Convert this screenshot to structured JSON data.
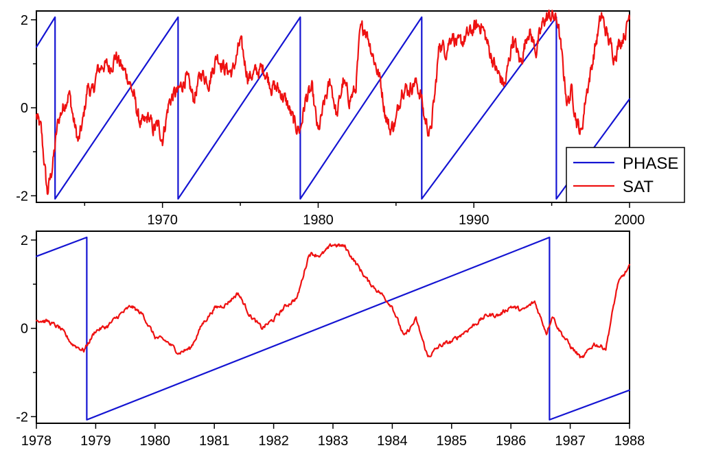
{
  "colors": {
    "phase": "#1414d2",
    "sat": "#ee1111"
  },
  "chart_data": [
    {
      "type": "line",
      "title": "",
      "xlabel": "",
      "ylabel": "",
      "xlim": [
        1961.9,
        2000
      ],
      "ylim": [
        -2.15,
        2.2
      ],
      "x_ticks": [
        1970,
        1980,
        1990,
        2000
      ],
      "x_ticks_unlabeled": [
        1965,
        1975,
        1985,
        1995
      ],
      "y_ticks": [
        -2,
        0,
        2
      ],
      "y_ticks_unlabeled": [
        -1,
        1
      ],
      "grid": false,
      "legend": {
        "placement": "bottom-right",
        "entries": [
          "PHASE",
          "SAT"
        ]
      },
      "series": [
        {
          "name": "PHASE",
          "color": "#1414d2",
          "kind": "sawtooth",
          "x": [
            1961.9,
            1963.1,
            1963.1,
            1971.0,
            1971.0,
            1978.85,
            1978.85,
            1986.65,
            1986.65,
            1995.3,
            1995.3,
            2000.0
          ],
          "y": [
            1.38,
            2.06,
            -2.07,
            2.06,
            -2.07,
            2.06,
            -2.07,
            2.06,
            -2.07,
            2.06,
            -2.07,
            0.2
          ]
        },
        {
          "name": "SAT",
          "color": "#ee1111",
          "kind": "noisy",
          "x": [
            1961.9,
            1962.2,
            1962.45,
            1962.6,
            1962.8,
            1963.0,
            1963.3,
            1963.6,
            1964.0,
            1964.3,
            1964.6,
            1964.9,
            1965.2,
            1965.5,
            1965.8,
            1966.2,
            1966.6,
            1967.0,
            1967.4,
            1967.8,
            1968.2,
            1968.5,
            1968.8,
            1969.1,
            1969.4,
            1969.7,
            1970.0,
            1970.4,
            1970.7,
            1971.0,
            1971.5,
            1972.0,
            1972.5,
            1973.0,
            1973.5,
            1974.0,
            1974.5,
            1975.0,
            1975.5,
            1976.0,
            1976.5,
            1977.0,
            1977.5,
            1978.0,
            1978.5,
            1978.85,
            1979.2,
            1979.6,
            1980.0,
            1980.4,
            1980.8,
            1981.2,
            1981.6,
            1982.0,
            1982.4,
            1982.7,
            1983.0,
            1983.3,
            1983.6,
            1984.0,
            1984.3,
            1984.6,
            1985.0,
            1985.4,
            1985.8,
            1986.2,
            1986.6,
            1986.8,
            1987.2,
            1987.5,
            1987.8,
            1988.2,
            1988.6,
            1989.0,
            1989.5,
            1990.0,
            1990.5,
            1991.0,
            1991.5,
            1992.0,
            1992.5,
            1993.0,
            1993.5,
            1994.0,
            1994.5,
            1995.0,
            1995.4,
            1995.7,
            1996.0,
            1996.3,
            1996.6,
            1996.9,
            1997.2,
            1997.5,
            1997.8,
            1998.2,
            1998.6,
            1999.0,
            1999.4,
            1999.8,
            2000.0
          ],
          "y": [
            -0.2,
            -0.5,
            -1.4,
            -1.95,
            -1.6,
            -1.15,
            -0.3,
            0.0,
            0.35,
            -0.3,
            -0.8,
            -0.3,
            0.5,
            0.3,
            0.8,
            1.0,
            0.9,
            1.2,
            0.9,
            0.7,
            0.2,
            -0.3,
            -0.4,
            -0.2,
            -0.5,
            -0.4,
            -0.7,
            0.1,
            0.3,
            0.35,
            0.7,
            0.2,
            0.8,
            0.6,
            1.2,
            0.9,
            0.8,
            1.5,
            0.7,
            0.8,
            0.9,
            0.5,
            0.4,
            0.1,
            -0.4,
            -0.5,
            0.2,
            0.4,
            -0.6,
            0.1,
            0.6,
            -0.2,
            0.6,
            0.2,
            0.4,
            1.7,
            1.85,
            1.5,
            1.1,
            0.6,
            -0.1,
            -0.5,
            -0.3,
            0.5,
            0.4,
            0.6,
            0.3,
            -0.2,
            -0.6,
            0.3,
            1.5,
            1.3,
            1.7,
            1.4,
            1.6,
            1.8,
            1.9,
            1.3,
            0.8,
            0.5,
            1.6,
            1.0,
            1.8,
            1.3,
            2.0,
            2.1,
            1.95,
            1.0,
            0.1,
            0.4,
            -0.3,
            -0.6,
            0.3,
            0.8,
            1.4,
            2.1,
            1.6,
            1.2,
            1.5,
            1.8,
            2.15
          ]
        }
      ]
    },
    {
      "type": "line",
      "title": "",
      "xlabel": "",
      "ylabel": "",
      "xlim": [
        1978,
        1988
      ],
      "ylim": [
        -2.15,
        2.2
      ],
      "x_ticks": [
        1978,
        1979,
        1980,
        1981,
        1982,
        1983,
        1984,
        1985,
        1986,
        1987,
        1988
      ],
      "y_ticks": [
        -2,
        0,
        2
      ],
      "y_ticks_unlabeled": [
        -1,
        1
      ],
      "grid": false,
      "legend": null,
      "series": [
        {
          "name": "PHASE",
          "color": "#1414d2",
          "kind": "sawtooth",
          "x": [
            1978.0,
            1978.85,
            1978.85,
            1986.65,
            1986.65,
            1988.0
          ],
          "y": [
            1.63,
            2.06,
            -2.07,
            2.06,
            -2.07,
            -1.4
          ]
        },
        {
          "name": "SAT",
          "color": "#ee1111",
          "kind": "smooth",
          "x": [
            1978.0,
            1978.2,
            1978.4,
            1978.6,
            1978.8,
            1979.0,
            1979.2,
            1979.4,
            1979.6,
            1979.8,
            1980.0,
            1980.2,
            1980.4,
            1980.6,
            1980.8,
            1981.0,
            1981.2,
            1981.4,
            1981.6,
            1981.8,
            1982.0,
            1982.2,
            1982.4,
            1982.6,
            1982.8,
            1983.0,
            1983.2,
            1983.4,
            1983.6,
            1983.8,
            1984.0,
            1984.2,
            1984.4,
            1984.6,
            1984.8,
            1985.0,
            1985.2,
            1985.4,
            1985.6,
            1985.8,
            1986.0,
            1986.2,
            1986.4,
            1986.6,
            1986.7,
            1986.8,
            1987.0,
            1987.2,
            1987.4,
            1987.6,
            1987.8,
            1988.0
          ],
          "y": [
            0.2,
            0.15,
            0.0,
            -0.35,
            -0.5,
            -0.05,
            0.05,
            0.3,
            0.5,
            0.3,
            -0.2,
            -0.3,
            -0.55,
            -0.45,
            0.1,
            0.45,
            0.55,
            0.8,
            0.3,
            0.0,
            0.2,
            0.5,
            0.7,
            1.7,
            1.65,
            1.9,
            1.85,
            1.45,
            1.05,
            0.8,
            0.5,
            -0.2,
            0.2,
            -0.65,
            -0.4,
            -0.3,
            -0.1,
            0.1,
            0.3,
            0.3,
            0.5,
            0.4,
            0.6,
            -0.1,
            0.3,
            0.0,
            -0.4,
            -0.7,
            -0.35,
            -0.45,
            1.0,
            1.4
          ]
        }
      ]
    }
  ]
}
